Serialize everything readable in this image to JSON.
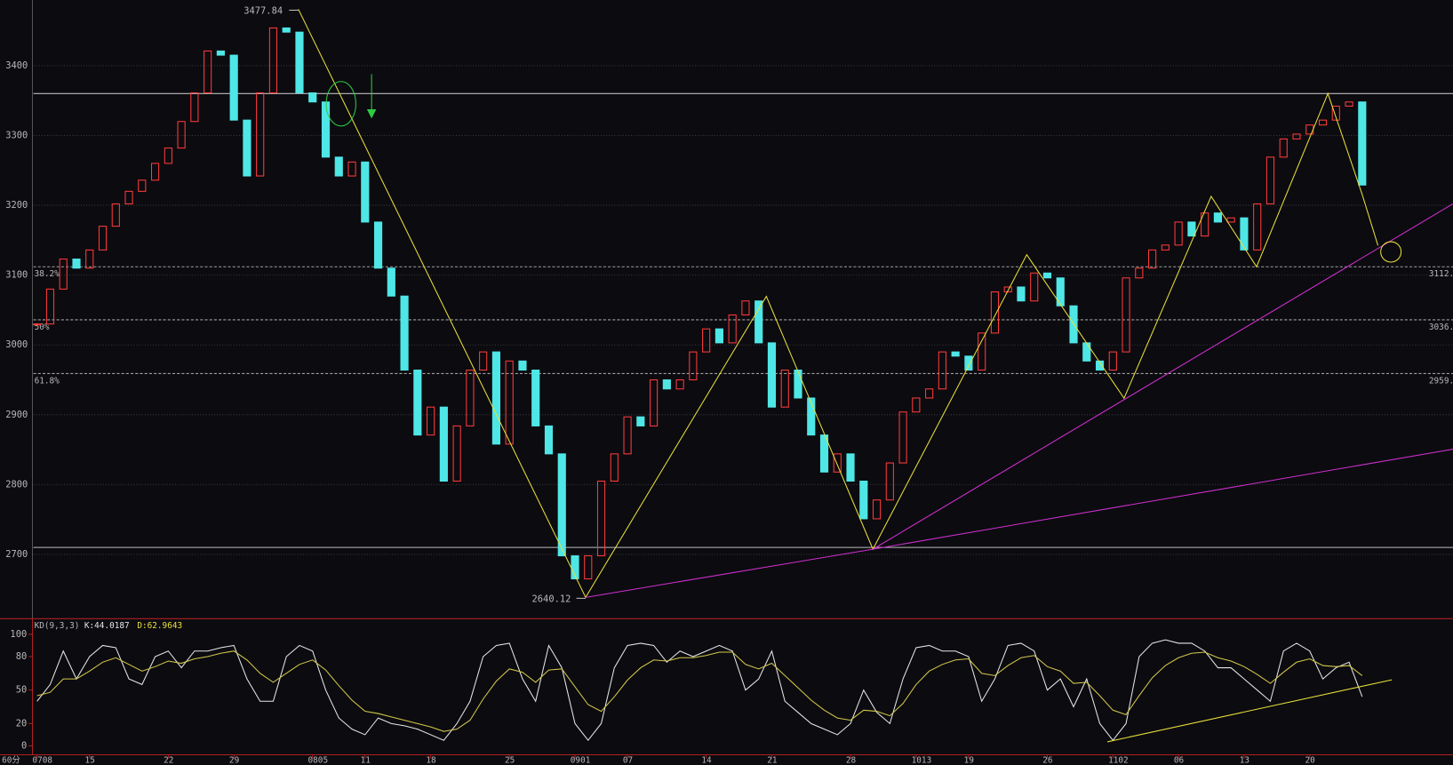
{
  "chart_data": {
    "type": "candlestick",
    "period": "60分",
    "closes": [
      3030,
      3080,
      3123,
      3110,
      3136,
      3170,
      3202,
      3220,
      3236,
      3260,
      3282,
      3320,
      3361,
      3421,
      3415,
      3322,
      3242,
      3361,
      3454,
      3448,
      3361,
      3348,
      3269,
      3242,
      3262,
      3176,
      3110,
      3070,
      2964,
      2871,
      2911,
      2805,
      2884,
      2964,
      2990,
      2858,
      2977,
      2964,
      2884,
      2844,
      2698,
      2665,
      2698,
      2805,
      2844,
      2897,
      2884,
      2950,
      2937,
      2950,
      2990,
      3023,
      3003,
      3043,
      3063,
      3003,
      2911,
      2964,
      2924,
      2871,
      2818,
      2844,
      2805,
      2751,
      2778,
      2831,
      2904,
      2924,
      2937,
      2990,
      2984,
      2964,
      3017,
      3076,
      3083,
      3063,
      3103,
      3096,
      3056,
      3003,
      2977,
      2964,
      2990,
      3096,
      3110,
      3136,
      3143,
      3176,
      3156,
      3189,
      3176,
      3182,
      3136,
      3202,
      3269,
      3295,
      3302,
      3315,
      3322,
      3342,
      3348,
      3229
    ],
    "categories": [
      "0708",
      null,
      null,
      null,
      "15",
      null,
      null,
      null,
      null,
      null,
      "22",
      null,
      null,
      null,
      null,
      "29",
      null,
      null,
      null,
      null,
      null,
      "0805",
      null,
      null,
      null,
      "11",
      null,
      null,
      null,
      null,
      "18",
      null,
      null,
      null,
      null,
      null,
      "25",
      null,
      null,
      null,
      null,
      "0901",
      null,
      null,
      null,
      "07",
      null,
      null,
      null,
      null,
      null,
      "14",
      null,
      null,
      null,
      null,
      "21",
      null,
      null,
      null,
      null,
      null,
      "28",
      null,
      null,
      null,
      null,
      "1013",
      null,
      null,
      null,
      "19",
      null,
      null,
      null,
      null,
      null,
      "26",
      null,
      null,
      null,
      null,
      "1102",
      null,
      null,
      null,
      null,
      "06",
      null,
      null,
      null,
      null,
      "13",
      null,
      null,
      null,
      null,
      "20",
      null,
      null,
      null,
      null
    ],
    "ylim": [
      2608,
      3494
    ],
    "yticks": [
      2700,
      2800,
      2900,
      3000,
      3100,
      3200,
      3300,
      3400
    ],
    "grid": true,
    "up_color": "#ff3b3b",
    "down_color": "#4fe6e6",
    "levels": [
      {
        "name": "38.2%",
        "value": 3112,
        "label": "3112."
      },
      {
        "name": "50%",
        "value": 3036,
        "label": "3036."
      },
      {
        "name": "61.8%",
        "value": 2959,
        "label": "2959."
      }
    ],
    "lines": [
      3360,
      2710
    ],
    "peak": 3477.84,
    "trough": 2640.12,
    "kd": {
      "title": "KD(9,3,3)",
      "k_label": "K:44.0187",
      "d_label": "D:62.9643",
      "ylim": [
        -8,
        114
      ],
      "yticks": [
        0,
        20,
        50,
        80,
        100
      ],
      "series": [
        {
          "color": "#e6e6e6",
          "values": [
            40,
            55,
            85,
            60,
            80,
            90,
            88,
            60,
            55,
            80,
            85,
            70,
            85,
            85,
            88,
            90,
            60,
            40,
            40,
            80,
            90,
            85,
            50,
            25,
            15,
            10,
            25,
            20,
            18,
            15,
            10,
            5,
            20,
            40,
            80,
            90,
            92,
            60,
            40,
            90,
            70,
            20,
            5,
            20,
            70,
            90,
            92,
            90,
            75,
            85,
            80,
            85,
            90,
            85,
            50,
            60,
            85,
            40,
            30,
            20,
            15,
            10,
            20,
            50,
            30,
            20,
            60,
            88,
            90,
            85,
            85,
            80,
            40,
            60,
            90,
            92,
            85,
            50,
            60,
            35,
            60,
            20,
            5,
            20,
            80,
            92,
            95,
            92,
            92,
            85,
            70,
            70,
            60,
            50,
            40,
            85,
            92,
            85,
            60,
            70,
            75,
            44.0187
          ]
        },
        {
          "color": "#d4c84a",
          "values": [
            45,
            48,
            60,
            60,
            67,
            75,
            79,
            73,
            67,
            71,
            76,
            74,
            78,
            80,
            83,
            85,
            77,
            65,
            57,
            65,
            73,
            77,
            68,
            54,
            41,
            31,
            29,
            26,
            23,
            20,
            17,
            13,
            15,
            23,
            42,
            58,
            69,
            66,
            57,
            68,
            69,
            53,
            37,
            31,
            44,
            59,
            70,
            77,
            76,
            79,
            79,
            81,
            84,
            84,
            73,
            69,
            74,
            63,
            52,
            41,
            32,
            25,
            23,
            32,
            31,
            27,
            38,
            55,
            67,
            73,
            77,
            78,
            65,
            63,
            72,
            79,
            81,
            71,
            67,
            56,
            57,
            45,
            32,
            28,
            45,
            61,
            72,
            79,
            83,
            84,
            79,
            76,
            71,
            64,
            56,
            66,
            75,
            78,
            72,
            71,
            72,
            62.9643
          ]
        }
      ]
    }
  }
}
